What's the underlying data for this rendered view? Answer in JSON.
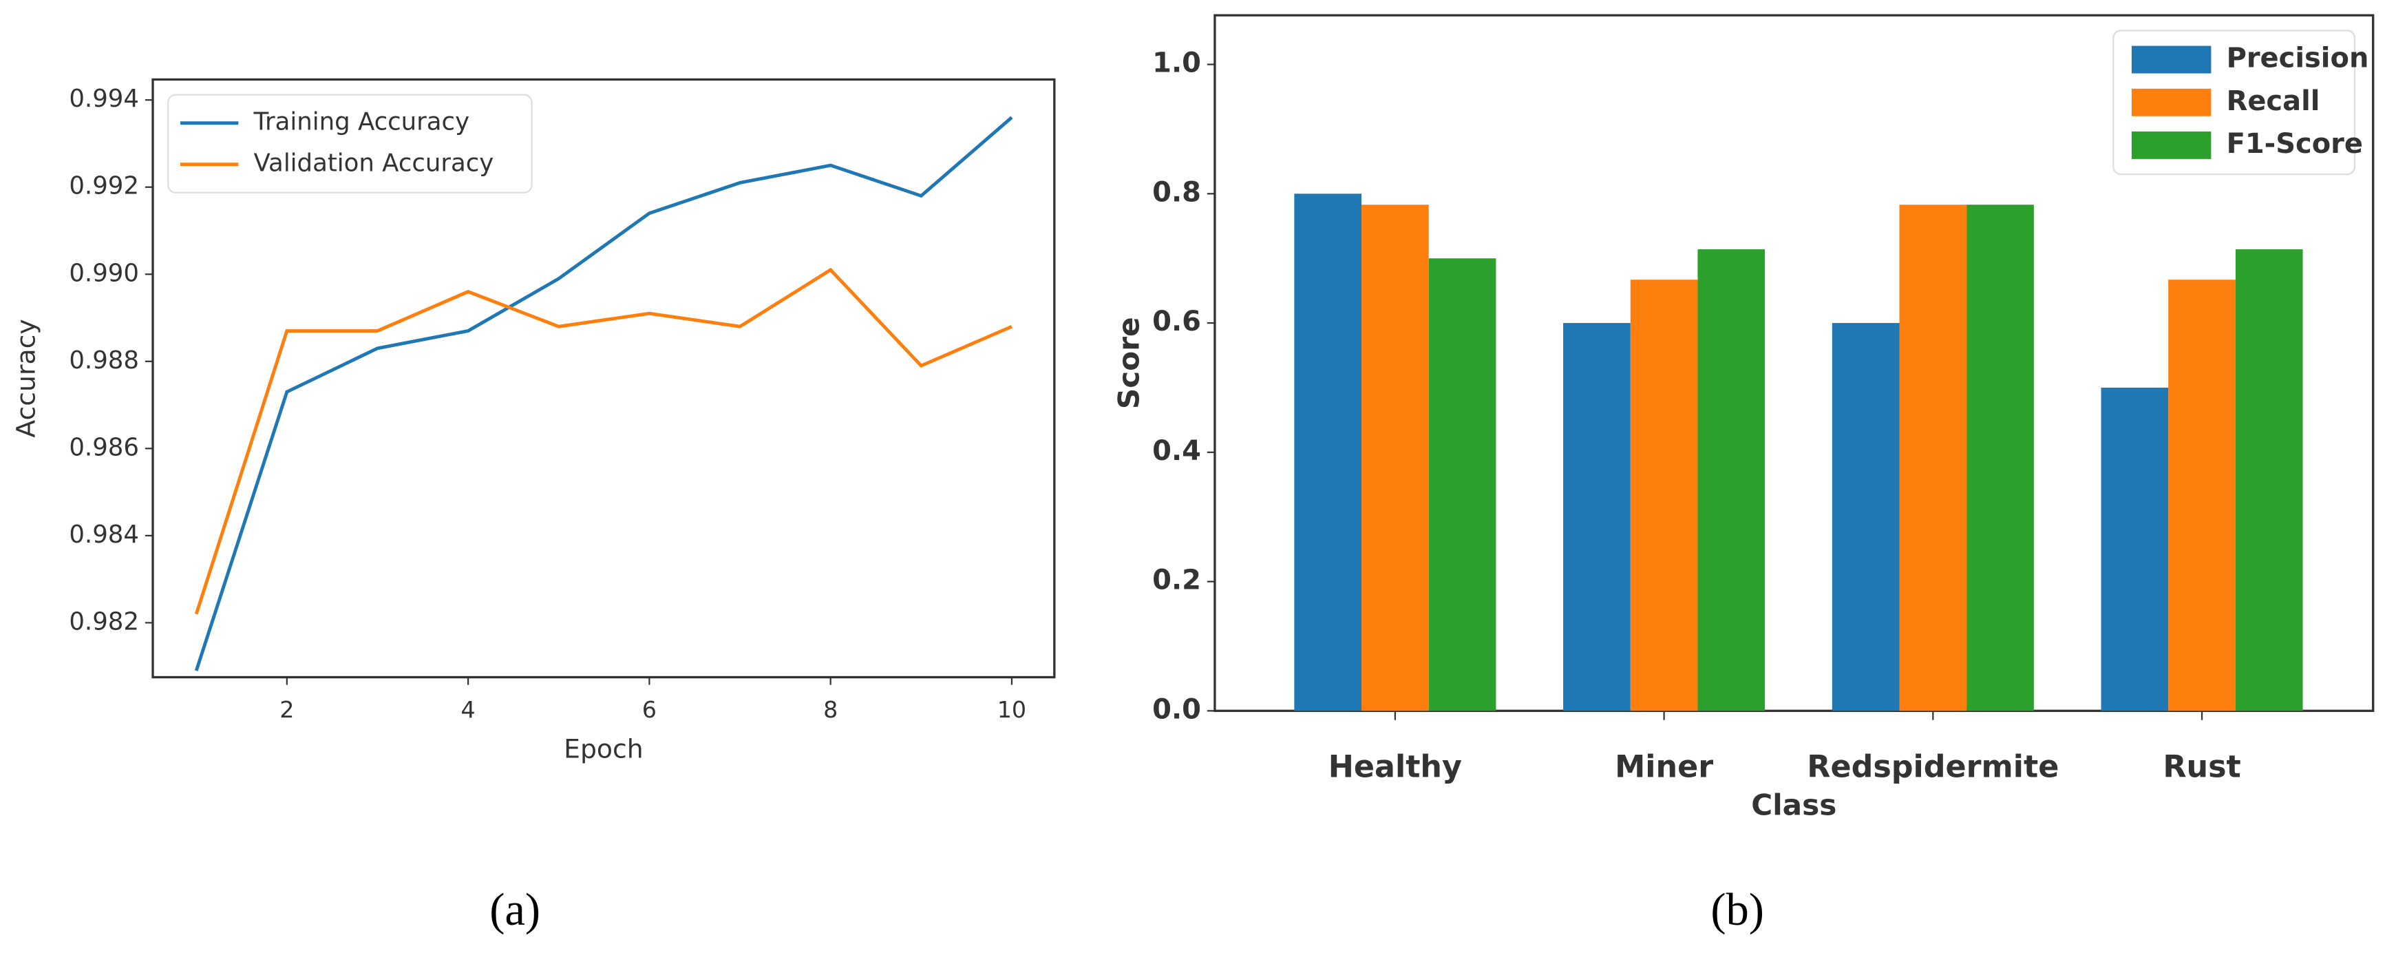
{
  "chart_data": [
    {
      "type": "line",
      "caption": "(a)",
      "xlabel": "Epoch",
      "ylabel": "Accuracy",
      "x": [
        1,
        2,
        3,
        4,
        5,
        6,
        7,
        8,
        9,
        10
      ],
      "series": [
        {
          "name": "Training Accuracy",
          "color": "#1f77b4",
          "values": [
            0.9809,
            0.9873,
            0.9883,
            0.9887,
            0.9899,
            0.9914,
            0.9921,
            0.9925,
            0.9918,
            0.9936
          ]
        },
        {
          "name": "Validation Accuracy",
          "color": "#ff7f0e",
          "values": [
            0.9822,
            0.9887,
            0.9887,
            0.9896,
            0.9888,
            0.9891,
            0.9888,
            0.9901,
            0.9879,
            0.9888
          ]
        }
      ],
      "xlim": [
        0.52,
        10.47
      ],
      "xticks": [
        2,
        4,
        6,
        8,
        10
      ],
      "ylim": [
        0.98075,
        0.99447
      ],
      "yticks": [
        0.982,
        0.984,
        0.986,
        0.988,
        {
          "value": 0.99,
          "label": "0.990"
        },
        0.992,
        0.994
      ],
      "legend": "upper-left"
    },
    {
      "type": "bar",
      "caption": "(b)",
      "xlabel": "Class",
      "ylabel": "Score",
      "categories": [
        "Healthy",
        "Miner",
        "Redspidermite",
        "Rust"
      ],
      "series": [
        {
          "name": "Precision",
          "color": "#1f77b4",
          "values": [
            0.8,
            0.6,
            0.6,
            0.5
          ]
        },
        {
          "name": "Recall",
          "color": "#ff7f0e",
          "values": [
            0.783,
            0.667,
            0.783,
            0.667
          ]
        },
        {
          "name": "F1-Score",
          "color": "#2ca02c",
          "values": [
            0.7,
            0.714,
            0.783,
            0.714
          ]
        }
      ],
      "ylim": [
        0,
        1.076
      ],
      "yticks": [
        {
          "value": 0,
          "label": "0.0"
        },
        {
          "value": 0.2,
          "label": "0.2"
        },
        {
          "value": 0.4,
          "label": "0.4"
        },
        {
          "value": 0.6,
          "label": "0.6"
        },
        {
          "value": 0.8,
          "label": "0.8"
        },
        {
          "value": 1,
          "label": "1.0"
        }
      ],
      "legend": "upper-right"
    }
  ]
}
